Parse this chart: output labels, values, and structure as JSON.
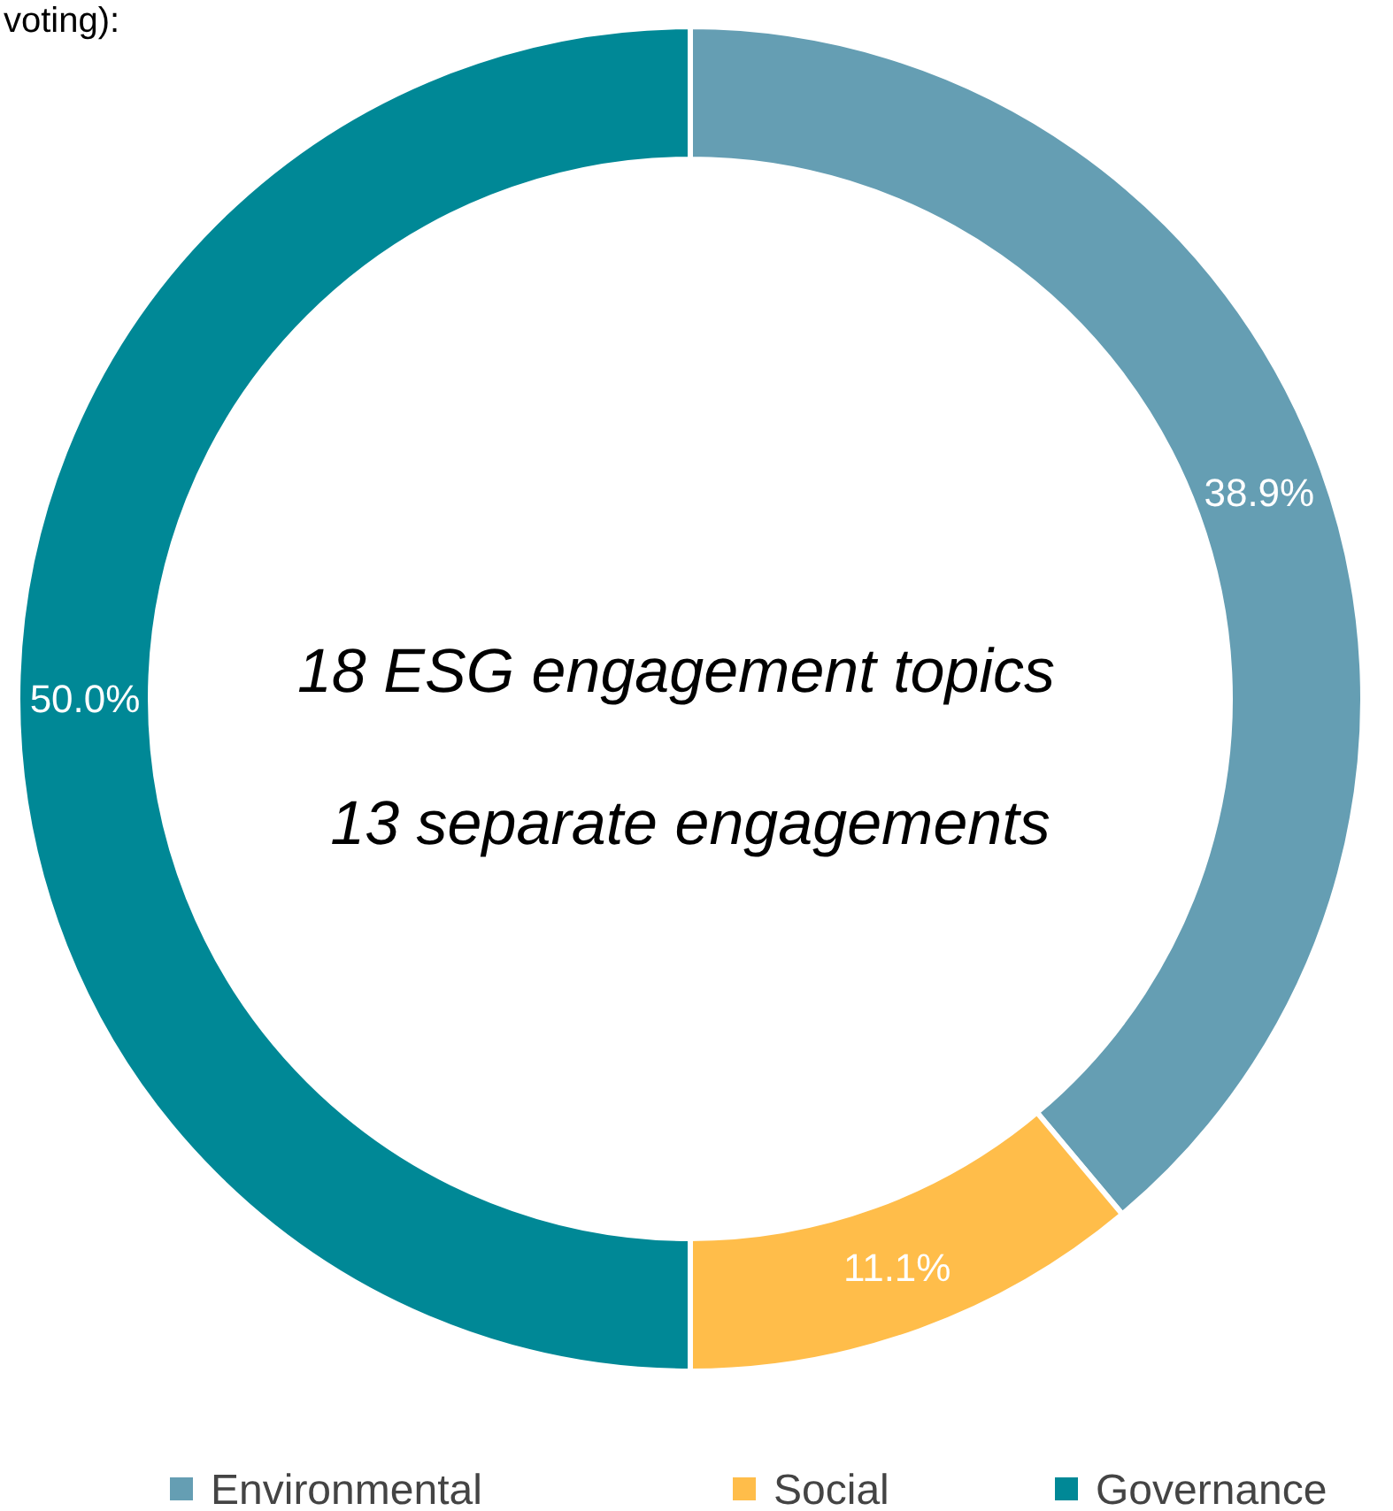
{
  "chart_data": {
    "type": "donut",
    "title": "voting):",
    "categories": [
      "Environmental",
      "Social",
      "Governance"
    ],
    "values": [
      38.9,
      11.1,
      50.0
    ],
    "colors": [
      "#659eb3",
      "#ffbd4a",
      "#008896"
    ],
    "value_labels": [
      "38.9%",
      "11.1%",
      "50.0%"
    ],
    "annotations": [
      "18 ESG engagement topics",
      "13 separate engagements"
    ],
    "legend": "bottom"
  }
}
